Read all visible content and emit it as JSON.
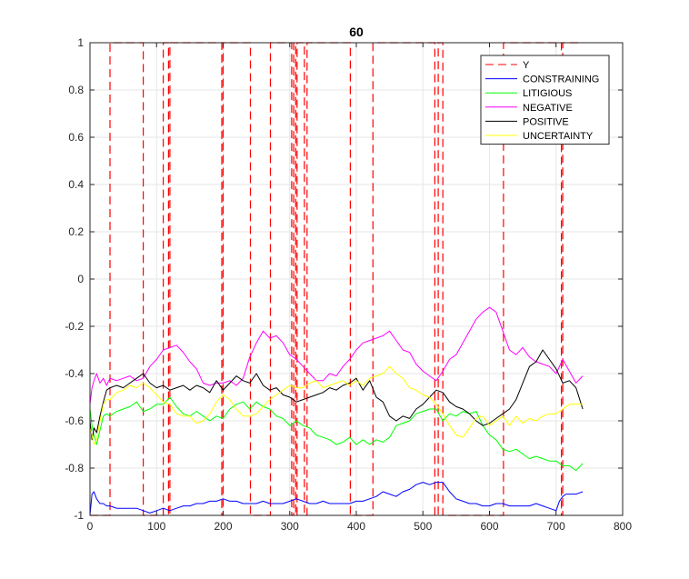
{
  "chart_data": {
    "type": "line",
    "title": "60",
    "xlabel": "",
    "ylabel": "",
    "xlim": [
      0,
      800
    ],
    "ylim": [
      -1,
      1
    ],
    "xticks": [
      "0",
      "100",
      "200",
      "300",
      "400",
      "500",
      "600",
      "700",
      "800"
    ],
    "yticks": [
      "-1",
      "-0.8",
      "-0.6",
      "-0.4",
      "-0.2",
      "0",
      "0.2",
      "0.4",
      "0.6",
      "0.8",
      "1"
    ],
    "grid": true,
    "legend_position": "top-right",
    "y_regime": {
      "name": "Y",
      "color": "#ff0000",
      "style": "dashed",
      "x": [
        0,
        30,
        30,
        80,
        80,
        110,
        110,
        118,
        118,
        120,
        120,
        198,
        198,
        200,
        200,
        241,
        241,
        271,
        271,
        303,
        303,
        306,
        306,
        309,
        309,
        311,
        311,
        322,
        322,
        326,
        326,
        391,
        391,
        425,
        425,
        518,
        518,
        523,
        523,
        530,
        530,
        621,
        621,
        708,
        708,
        710,
        710,
        740
      ],
      "y": [
        -1,
        -1,
        1,
        1,
        -1,
        -1,
        1,
        1,
        -1,
        -1,
        1,
        1,
        -1,
        -1,
        1,
        1,
        -1,
        -1,
        1,
        1,
        -1,
        -1,
        1,
        1,
        -1,
        -1,
        1,
        1,
        -1,
        -1,
        1,
        1,
        -1,
        -1,
        1,
        1,
        -1,
        -1,
        1,
        1,
        -1,
        -1,
        1,
        1,
        -1,
        -1,
        1,
        1
      ]
    },
    "series": [
      {
        "name": "CONSTRAINING",
        "color": "#0000ff",
        "x": [
          0,
          3,
          6,
          10,
          15,
          20,
          25,
          30,
          40,
          50,
          60,
          70,
          80,
          90,
          100,
          110,
          120,
          130,
          140,
          150,
          160,
          170,
          180,
          190,
          200,
          210,
          220,
          230,
          240,
          250,
          260,
          270,
          280,
          290,
          300,
          310,
          320,
          330,
          340,
          350,
          360,
          370,
          380,
          390,
          400,
          410,
          420,
          430,
          440,
          450,
          460,
          470,
          480,
          490,
          500,
          510,
          520,
          530,
          540,
          550,
          560,
          570,
          580,
          590,
          600,
          610,
          620,
          630,
          640,
          650,
          660,
          670,
          680,
          690,
          700,
          705,
          710,
          715,
          720,
          730,
          740
        ],
        "y": [
          -1.0,
          -0.91,
          -0.9,
          -0.93,
          -0.95,
          -0.95,
          -0.96,
          -0.96,
          -0.97,
          -0.97,
          -0.97,
          -0.97,
          -0.98,
          -0.99,
          -0.98,
          -0.97,
          -0.98,
          -0.97,
          -0.96,
          -0.96,
          -0.95,
          -0.95,
          -0.94,
          -0.94,
          -0.93,
          -0.94,
          -0.94,
          -0.95,
          -0.95,
          -0.95,
          -0.94,
          -0.95,
          -0.95,
          -0.95,
          -0.94,
          -0.93,
          -0.94,
          -0.95,
          -0.95,
          -0.94,
          -0.95,
          -0.95,
          -0.95,
          -0.95,
          -0.94,
          -0.94,
          -0.93,
          -0.92,
          -0.9,
          -0.91,
          -0.92,
          -0.9,
          -0.89,
          -0.87,
          -0.86,
          -0.87,
          -0.86,
          -0.86,
          -0.9,
          -0.93,
          -0.94,
          -0.95,
          -0.95,
          -0.96,
          -0.96,
          -0.95,
          -0.95,
          -0.96,
          -0.96,
          -0.96,
          -0.96,
          -0.95,
          -0.96,
          -0.97,
          -0.98,
          -0.94,
          -0.92,
          -0.91,
          -0.91,
          -0.91,
          -0.9
        ]
      },
      {
        "name": "LITIGIOUS",
        "color": "#00ff00",
        "x": [
          0,
          3,
          6,
          10,
          15,
          20,
          25,
          30,
          40,
          50,
          60,
          70,
          80,
          90,
          100,
          110,
          120,
          130,
          140,
          150,
          160,
          170,
          180,
          190,
          200,
          210,
          220,
          230,
          240,
          250,
          260,
          270,
          280,
          290,
          300,
          310,
          320,
          330,
          340,
          350,
          360,
          370,
          380,
          390,
          400,
          410,
          420,
          430,
          440,
          450,
          460,
          470,
          480,
          490,
          500,
          510,
          520,
          530,
          540,
          550,
          560,
          570,
          580,
          590,
          600,
          610,
          620,
          630,
          640,
          650,
          660,
          670,
          680,
          690,
          700,
          710,
          720,
          730,
          740
        ],
        "y": [
          -0.55,
          -0.62,
          -0.66,
          -0.7,
          -0.64,
          -0.58,
          -0.57,
          -0.58,
          -0.56,
          -0.55,
          -0.54,
          -0.52,
          -0.56,
          -0.55,
          -0.53,
          -0.53,
          -0.5,
          -0.54,
          -0.57,
          -0.58,
          -0.56,
          -0.58,
          -0.6,
          -0.58,
          -0.59,
          -0.55,
          -0.53,
          -0.52,
          -0.55,
          -0.52,
          -0.54,
          -0.55,
          -0.58,
          -0.59,
          -0.62,
          -0.6,
          -0.62,
          -0.63,
          -0.66,
          -0.67,
          -0.68,
          -0.7,
          -0.69,
          -0.67,
          -0.7,
          -0.68,
          -0.7,
          -0.68,
          -0.69,
          -0.67,
          -0.62,
          -0.61,
          -0.6,
          -0.57,
          -0.56,
          -0.55,
          -0.55,
          -0.6,
          -0.57,
          -0.58,
          -0.56,
          -0.57,
          -0.56,
          -0.62,
          -0.66,
          -0.68,
          -0.72,
          -0.73,
          -0.72,
          -0.74,
          -0.76,
          -0.75,
          -0.76,
          -0.77,
          -0.77,
          -0.79,
          -0.79,
          -0.81,
          -0.78
        ]
      },
      {
        "name": "NEGATIVE",
        "color": "#ff00ff",
        "x": [
          0,
          3,
          6,
          10,
          15,
          20,
          25,
          30,
          40,
          50,
          60,
          70,
          80,
          90,
          100,
          110,
          120,
          130,
          140,
          150,
          160,
          170,
          180,
          190,
          200,
          210,
          220,
          230,
          240,
          250,
          260,
          270,
          280,
          290,
          300,
          310,
          320,
          330,
          340,
          350,
          360,
          370,
          380,
          390,
          400,
          410,
          420,
          430,
          440,
          450,
          460,
          470,
          480,
          490,
          500,
          510,
          520,
          530,
          540,
          550,
          560,
          570,
          580,
          590,
          600,
          610,
          620,
          630,
          640,
          650,
          660,
          670,
          680,
          690,
          700,
          710,
          720,
          730,
          740
        ],
        "y": [
          -0.53,
          -0.46,
          -0.43,
          -0.4,
          -0.44,
          -0.42,
          -0.45,
          -0.42,
          -0.43,
          -0.42,
          -0.41,
          -0.43,
          -0.42,
          -0.37,
          -0.34,
          -0.3,
          -0.29,
          -0.28,
          -0.31,
          -0.35,
          -0.38,
          -0.44,
          -0.45,
          -0.44,
          -0.44,
          -0.43,
          -0.45,
          -0.42,
          -0.33,
          -0.27,
          -0.22,
          -0.25,
          -0.24,
          -0.27,
          -0.32,
          -0.34,
          -0.37,
          -0.4,
          -0.43,
          -0.43,
          -0.4,
          -0.41,
          -0.37,
          -0.34,
          -0.3,
          -0.27,
          -0.26,
          -0.25,
          -0.24,
          -0.22,
          -0.26,
          -0.3,
          -0.31,
          -0.36,
          -0.39,
          -0.41,
          -0.43,
          -0.39,
          -0.34,
          -0.32,
          -0.27,
          -0.22,
          -0.17,
          -0.14,
          -0.12,
          -0.14,
          -0.22,
          -0.3,
          -0.32,
          -0.29,
          -0.33,
          -0.35,
          -0.36,
          -0.37,
          -0.4,
          -0.34,
          -0.39,
          -0.44,
          -0.41
        ]
      },
      {
        "name": "POSITIVE",
        "color": "#000000",
        "x": [
          0,
          3,
          6,
          10,
          15,
          20,
          25,
          30,
          40,
          50,
          60,
          70,
          80,
          90,
          100,
          110,
          120,
          130,
          140,
          150,
          160,
          170,
          180,
          190,
          200,
          210,
          220,
          230,
          240,
          250,
          260,
          270,
          280,
          290,
          300,
          310,
          320,
          330,
          340,
          350,
          360,
          370,
          380,
          390,
          400,
          410,
          420,
          430,
          440,
          450,
          460,
          470,
          480,
          490,
          500,
          510,
          520,
          530,
          540,
          550,
          560,
          570,
          580,
          590,
          600,
          610,
          620,
          630,
          640,
          650,
          660,
          670,
          680,
          690,
          700,
          710,
          720,
          730,
          740
        ],
        "y": [
          -0.6,
          -0.68,
          -0.63,
          -0.65,
          -0.58,
          -0.52,
          -0.47,
          -0.46,
          -0.45,
          -0.46,
          -0.44,
          -0.42,
          -0.4,
          -0.44,
          -0.46,
          -0.45,
          -0.47,
          -0.46,
          -0.45,
          -0.47,
          -0.45,
          -0.46,
          -0.48,
          -0.43,
          -0.47,
          -0.44,
          -0.41,
          -0.43,
          -0.44,
          -0.4,
          -0.45,
          -0.47,
          -0.46,
          -0.49,
          -0.5,
          -0.52,
          -0.51,
          -0.5,
          -0.49,
          -0.48,
          -0.46,
          -0.47,
          -0.45,
          -0.44,
          -0.42,
          -0.47,
          -0.43,
          -0.5,
          -0.52,
          -0.58,
          -0.6,
          -0.58,
          -0.59,
          -0.55,
          -0.53,
          -0.5,
          -0.47,
          -0.48,
          -0.52,
          -0.54,
          -0.55,
          -0.57,
          -0.6,
          -0.62,
          -0.61,
          -0.59,
          -0.57,
          -0.55,
          -0.51,
          -0.44,
          -0.37,
          -0.35,
          -0.3,
          -0.34,
          -0.38,
          -0.44,
          -0.43,
          -0.46,
          -0.55
        ]
      },
      {
        "name": "UNCERTAINTY",
        "color": "#ffff00",
        "x": [
          0,
          3,
          6,
          10,
          15,
          20,
          25,
          30,
          40,
          50,
          60,
          70,
          80,
          90,
          100,
          110,
          120,
          130,
          140,
          150,
          160,
          170,
          180,
          190,
          200,
          210,
          220,
          230,
          240,
          250,
          260,
          270,
          280,
          290,
          300,
          310,
          320,
          330,
          340,
          350,
          360,
          370,
          380,
          390,
          400,
          410,
          420,
          430,
          440,
          450,
          460,
          470,
          480,
          490,
          500,
          510,
          520,
          530,
          540,
          550,
          560,
          570,
          580,
          590,
          600,
          610,
          620,
          630,
          640,
          650,
          660,
          670,
          680,
          690,
          700,
          710,
          720,
          730,
          740
        ],
        "y": [
          -0.63,
          -0.66,
          -0.7,
          -0.68,
          -0.6,
          -0.53,
          -0.51,
          -0.51,
          -0.48,
          -0.47,
          -0.45,
          -0.46,
          -0.44,
          -0.46,
          -0.49,
          -0.52,
          -0.53,
          -0.57,
          -0.58,
          -0.58,
          -0.61,
          -0.6,
          -0.57,
          -0.52,
          -0.49,
          -0.51,
          -0.55,
          -0.58,
          -0.58,
          -0.57,
          -0.54,
          -0.51,
          -0.49,
          -0.47,
          -0.45,
          -0.46,
          -0.46,
          -0.44,
          -0.43,
          -0.46,
          -0.45,
          -0.44,
          -0.43,
          -0.45,
          -0.43,
          -0.45,
          -0.42,
          -0.41,
          -0.4,
          -0.37,
          -0.4,
          -0.42,
          -0.46,
          -0.47,
          -0.49,
          -0.5,
          -0.53,
          -0.57,
          -0.62,
          -0.66,
          -0.67,
          -0.63,
          -0.59,
          -0.58,
          -0.62,
          -0.6,
          -0.58,
          -0.62,
          -0.58,
          -0.61,
          -0.59,
          -0.6,
          -0.58,
          -0.57,
          -0.57,
          -0.55,
          -0.53,
          -0.53,
          -0.53
        ]
      }
    ]
  }
}
